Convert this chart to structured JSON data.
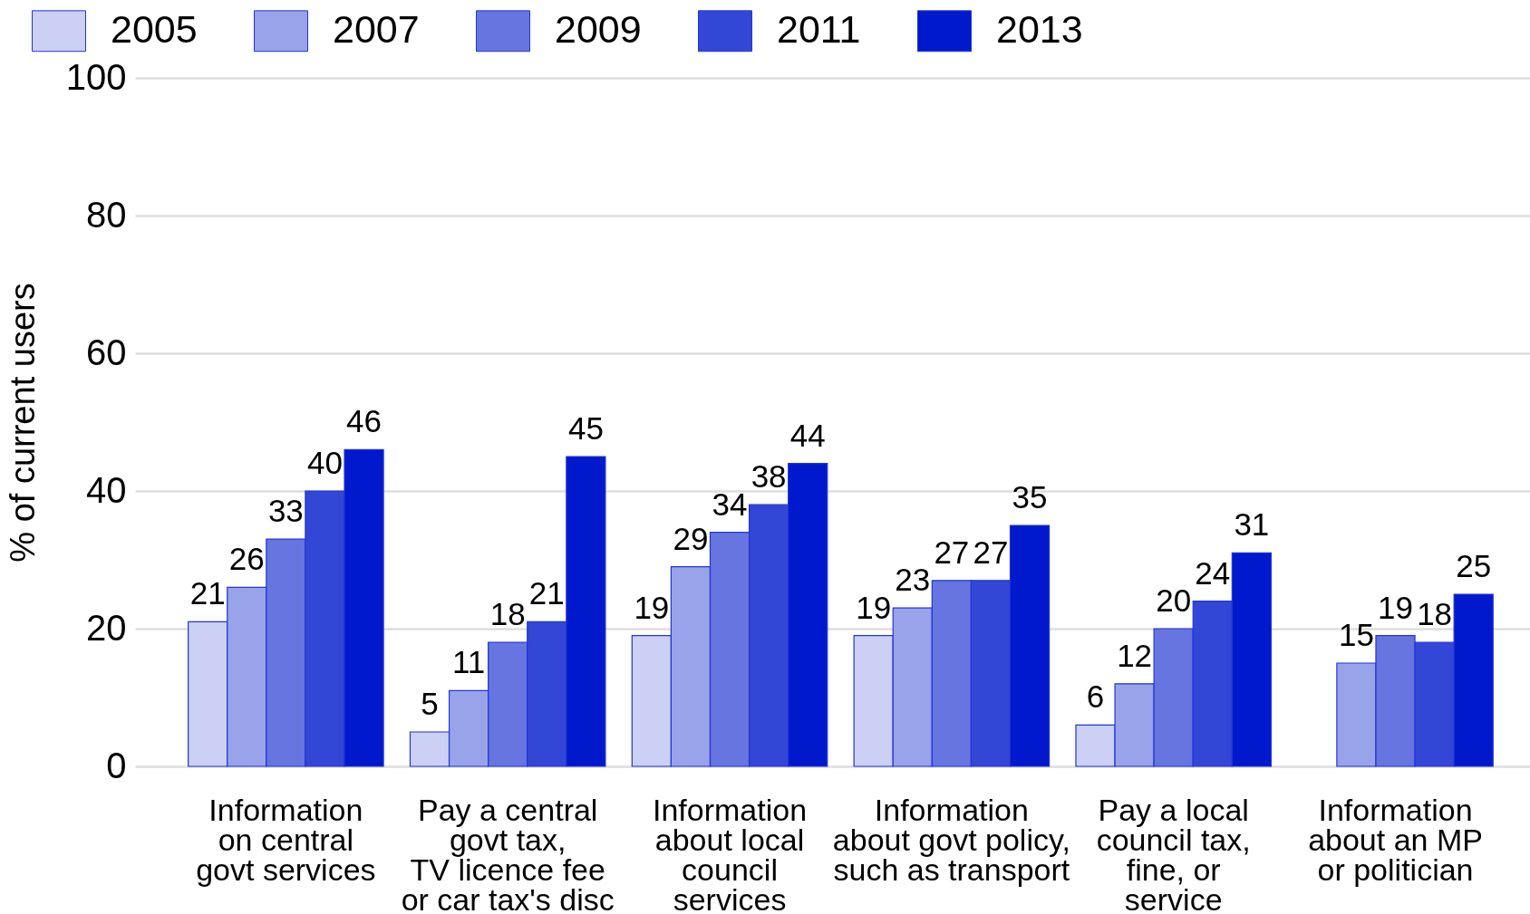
{
  "chart_data": {
    "type": "bar",
    "ylabel": "% of current users",
    "categories": [
      "Information\non central\ngovt services",
      "Pay a central\ngovt tax,\nTV licence fee\nor car tax's disc",
      "Information\nabout local\ncouncil\nservices",
      "Information\nabout govt policy,\nsuch as transport",
      "Pay a local\ncouncil tax,\nfine, or\nservice",
      "Information\nabout an MP\nor politician"
    ],
    "series": [
      {
        "name": "2005",
        "color": "#ccd0f4",
        "values": [
          21,
          5,
          19,
          19,
          6,
          null
        ]
      },
      {
        "name": "2007",
        "color": "#99a3ea",
        "values": [
          26,
          11,
          29,
          23,
          12,
          15
        ]
      },
      {
        "name": "2009",
        "color": "#6675e0",
        "values": [
          33,
          18,
          34,
          27,
          20,
          19
        ]
      },
      {
        "name": "2011",
        "color": "#3347d6",
        "values": [
          40,
          21,
          38,
          27,
          24,
          18
        ]
      },
      {
        "name": "2013",
        "color": "#0019cc",
        "values": [
          46,
          45,
          44,
          35,
          31,
          25
        ]
      }
    ],
    "ylim": [
      0,
      100
    ],
    "yticks": [
      0,
      20,
      40,
      60,
      80,
      100
    ],
    "grid": "y",
    "legend": "top left",
    "data_labels": true
  }
}
